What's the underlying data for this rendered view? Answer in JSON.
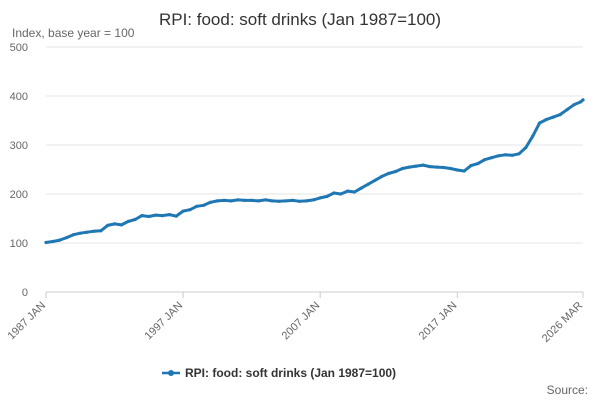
{
  "chart_data": {
    "type": "line",
    "title": "RPI: food: soft drinks (Jan 1987=100)",
    "subtitle": "Index, base year = 100",
    "xlabel": "",
    "ylabel": "Index, base year = 100",
    "ylim": [
      0,
      500
    ],
    "y_ticks": [
      "0",
      "100",
      "200",
      "300",
      "400",
      "500"
    ],
    "x_ticks": [
      "1987 JAN",
      "1997 JAN",
      "2007 JAN",
      "2017 JAN",
      "2026 MAR"
    ],
    "x_range": [
      1987.0,
      2026.167
    ],
    "grid": true,
    "legend_position": "bottom",
    "source_label": "Source:",
    "series": [
      {
        "name": "RPI: food: soft drinks (Jan 1987=100)",
        "color": "#1f77b4",
        "x": [
          1987.0,
          1987.5,
          1988.0,
          1988.5,
          1989.0,
          1989.5,
          1990.0,
          1990.5,
          1991.0,
          1991.5,
          1992.0,
          1992.5,
          1993.0,
          1993.5,
          1994.0,
          1994.5,
          1995.0,
          1995.5,
          1996.0,
          1996.5,
          1997.0,
          1997.5,
          1998.0,
          1998.5,
          1999.0,
          1999.5,
          2000.0,
          2000.5,
          2001.0,
          2001.5,
          2002.0,
          2002.5,
          2003.0,
          2003.5,
          2004.0,
          2004.5,
          2005.0,
          2005.5,
          2006.0,
          2006.5,
          2007.0,
          2007.5,
          2008.0,
          2008.5,
          2009.0,
          2009.5,
          2010.0,
          2010.5,
          2011.0,
          2011.5,
          2012.0,
          2012.5,
          2013.0,
          2013.5,
          2014.0,
          2014.5,
          2015.0,
          2015.5,
          2016.0,
          2016.5,
          2017.0,
          2017.5,
          2018.0,
          2018.5,
          2019.0,
          2019.5,
          2020.0,
          2020.5,
          2021.0,
          2021.5,
          2022.0,
          2022.5,
          2023.0,
          2023.5,
          2024.0,
          2024.5,
          2025.0,
          2025.5,
          2026.0,
          2026.167
        ],
        "values": [
          101,
          103,
          106,
          111,
          117,
          120,
          122,
          124,
          125,
          136,
          139,
          137,
          144,
          148,
          156,
          154,
          157,
          156,
          158,
          155,
          165,
          168,
          175,
          177,
          183,
          186,
          187,
          186,
          188,
          187,
          187,
          186,
          188,
          186,
          185,
          186,
          187,
          185,
          186,
          188,
          192,
          195,
          202,
          200,
          206,
          204,
          212,
          220,
          228,
          236,
          242,
          246,
          252,
          255,
          257,
          259,
          256,
          255,
          254,
          252,
          249,
          247,
          258,
          262,
          270,
          274,
          278,
          280,
          279,
          282,
          295,
          318,
          345,
          352,
          357,
          362,
          372,
          382,
          388,
          392
        ]
      }
    ]
  }
}
